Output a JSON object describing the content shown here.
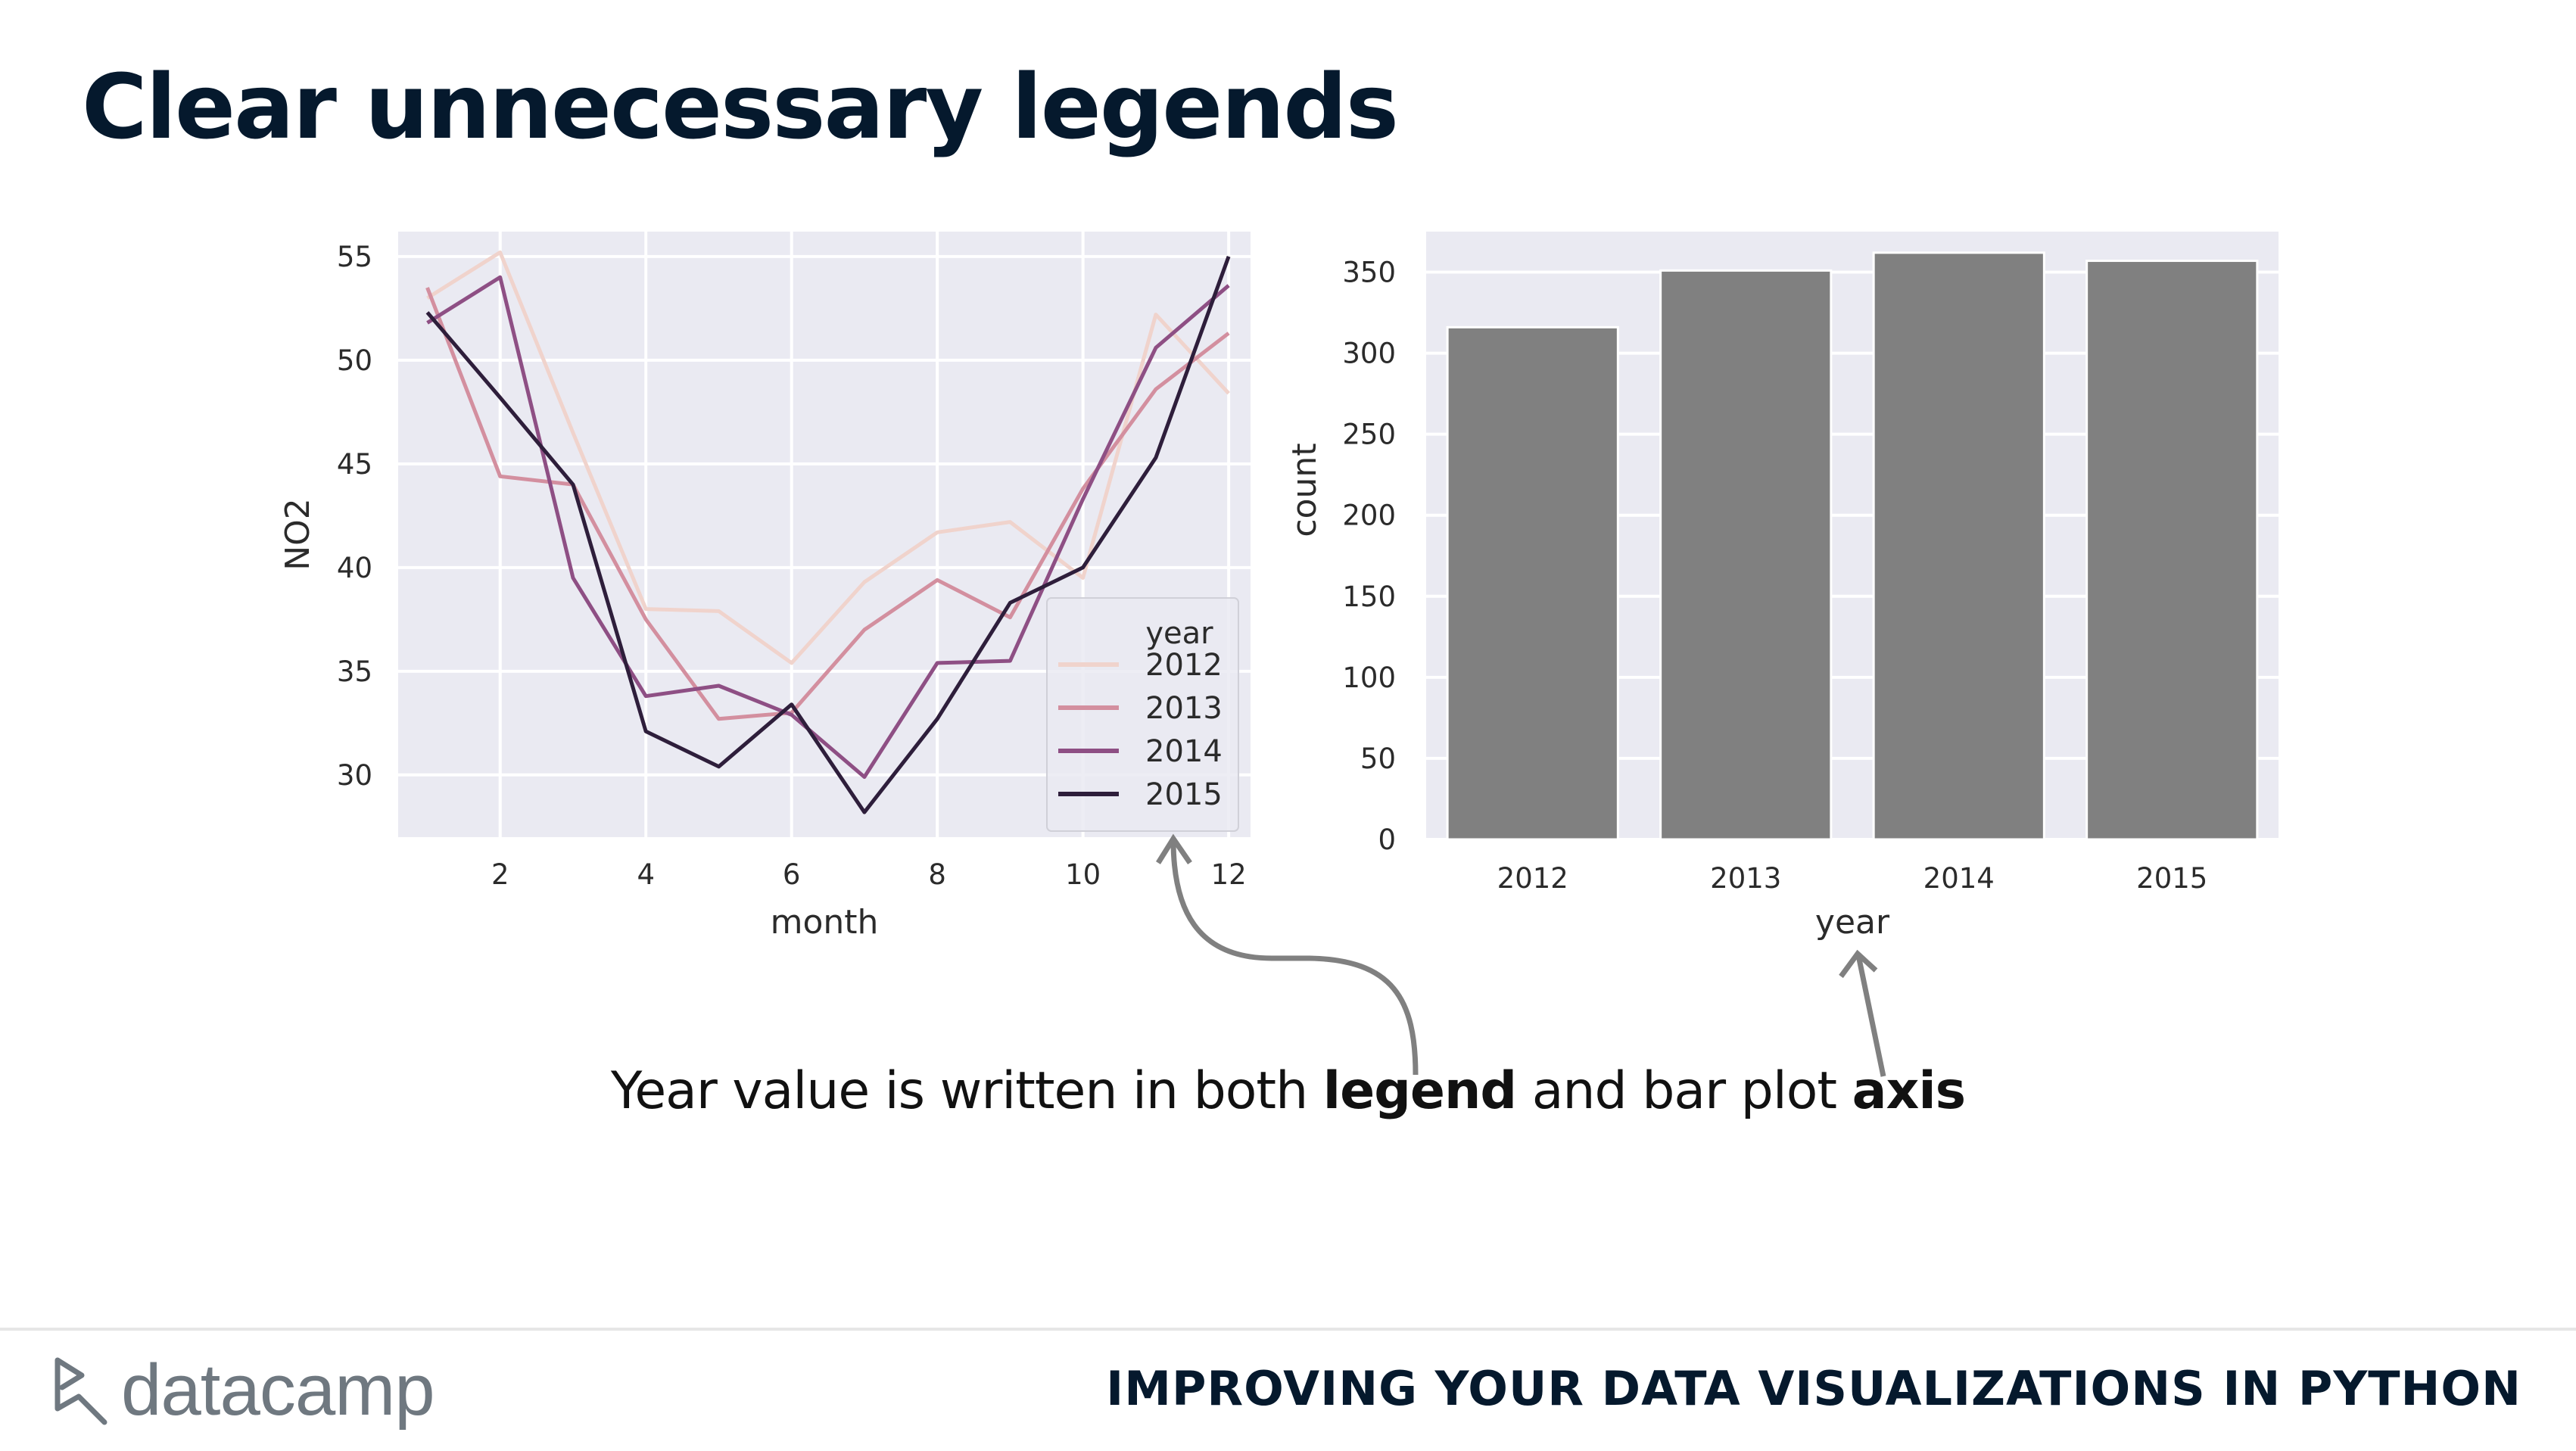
{
  "slide": {
    "title": "Clear unnecessary legends",
    "caption": {
      "part1": "Year value is written in both ",
      "bold1": "legend",
      "part2": " and bar plot ",
      "bold2": "axis"
    },
    "footer": {
      "logo_text": "datacamp",
      "course_title": "IMPROVING YOUR DATA VISUALIZATIONS IN PYTHON"
    }
  },
  "colors": {
    "plot_bg": "#eaeaf2",
    "grid": "#ffffff",
    "bar": "#808080",
    "annotation_arrow": "#808080"
  },
  "chart_data": [
    {
      "type": "line",
      "xlabel": "month",
      "ylabel": "NO2",
      "xlim": [
        0.6,
        12.3
      ],
      "ylim": [
        27,
        56.2
      ],
      "xticks": [
        2,
        4,
        6,
        8,
        10,
        12
      ],
      "yticks": [
        30,
        35,
        40,
        45,
        50,
        55
      ],
      "grid": true,
      "legend": {
        "title": "year",
        "position": "lower-right"
      },
      "x": [
        1,
        2,
        3,
        4,
        5,
        6,
        7,
        8,
        9,
        10,
        11,
        12
      ],
      "series": [
        {
          "name": "2012",
          "color": "#f0d3cc",
          "values": [
            53.0,
            55.2,
            46.5,
            38.0,
            37.9,
            35.4,
            39.3,
            41.7,
            42.2,
            39.5,
            52.2,
            48.4
          ]
        },
        {
          "name": "2013",
          "color": "#d38f9f",
          "values": [
            53.5,
            44.4,
            44.0,
            37.5,
            32.7,
            33.0,
            37.0,
            39.4,
            37.6,
            43.8,
            48.6,
            51.3
          ]
        },
        {
          "name": "2014",
          "color": "#8e4f84",
          "values": [
            51.8,
            54.0,
            39.5,
            33.8,
            34.3,
            32.9,
            29.9,
            35.4,
            35.5,
            43.3,
            50.6,
            53.6
          ]
        },
        {
          "name": "2015",
          "color": "#2e1e3b",
          "values": [
            52.3,
            48.2,
            44.0,
            32.1,
            30.4,
            33.4,
            28.2,
            32.7,
            38.3,
            40.0,
            45.3,
            55.0
          ]
        }
      ]
    },
    {
      "type": "bar",
      "xlabel": "year",
      "ylabel": "count",
      "ylim": [
        0,
        375
      ],
      "yticks": [
        0,
        50,
        100,
        150,
        200,
        250,
        300,
        350
      ],
      "grid": true,
      "categories": [
        "2012",
        "2013",
        "2014",
        "2015"
      ],
      "values": [
        316,
        351,
        362,
        357
      ]
    }
  ]
}
